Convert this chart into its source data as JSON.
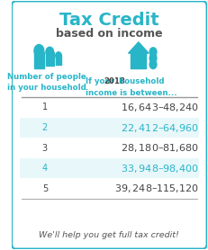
{
  "title_line1": "Tax Credit",
  "title_line2": "based on income",
  "title_color": "#29b5c8",
  "subtitle_color": "#555555",
  "left_header": "Number of people\nin your household",
  "right_header_part1": "If your ",
  "right_header_year": "2018",
  "right_header_part2": " household\nincome is between...",
  "header_color": "#29b5c8",
  "year_color": "#444444",
  "rows": [
    {
      "num": "1",
      "range": "$16,643 – $48,240",
      "highlight": false
    },
    {
      "num": "2",
      "range": "$22,412 – $64,960",
      "highlight": true
    },
    {
      "num": "3",
      "range": "$28,180 – $81,680",
      "highlight": false
    },
    {
      "num": "4",
      "range": "$33,948 – $98,400",
      "highlight": true
    },
    {
      "num": "5",
      "range": "$39,248 – $115,120",
      "highlight": false
    }
  ],
  "normal_text_color": "#444444",
  "highlight_text_color": "#29b5c8",
  "highlight_bg": "#e8f7fa",
  "footer_text": "We'll help you get full tax credit!",
  "footer_color": "#555555",
  "outer_border_color": "#29b5c8",
  "separator_color": "#999999",
  "bg_color": "#ffffff"
}
